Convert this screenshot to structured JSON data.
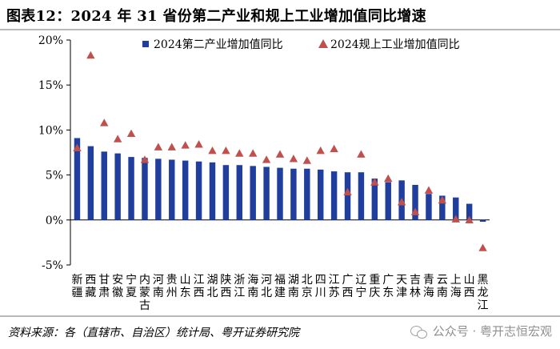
{
  "title": "图表12：2024 年 31 省份第二产业和规上工业增加值同比增速",
  "source": "资料来源：各（直辖市、自治区）统计局、粤开证券研究院",
  "watermark": "公众号 · 粤开志恒宏观",
  "chart_data": {
    "type": "bar",
    "categories": [
      "新疆",
      "西藏",
      "甘肃",
      "安徽",
      "宁夏",
      "内蒙古",
      "河南",
      "贵州",
      "山东",
      "江西",
      "湖北",
      "陕西",
      "浙江",
      "海南",
      "河北",
      "福建",
      "湖南",
      "北京",
      "四川",
      "江苏",
      "广西",
      "辽宁",
      "重庆",
      "广东",
      "天津",
      "吉林",
      "青海",
      "云南",
      "上海",
      "山西",
      "黑龙江"
    ],
    "series": [
      {
        "name": "2024第二产业增加值同比",
        "type": "bar",
        "color": "#1f3e9e",
        "values": [
          9.1,
          8.2,
          7.6,
          7.4,
          7.0,
          6.9,
          6.8,
          6.7,
          6.6,
          6.5,
          6.4,
          6.1,
          6.1,
          6.0,
          5.9,
          5.8,
          5.7,
          5.7,
          5.6,
          5.4,
          5.3,
          5.3,
          4.6,
          4.2,
          4.4,
          3.9,
          2.9,
          2.7,
          2.5,
          1.8,
          -0.2
        ]
      },
      {
        "name": "2024规上工业增加值同比",
        "type": "marker",
        "color": "#c0504d",
        "values": [
          8.0,
          18.3,
          10.8,
          9.0,
          9.6,
          6.7,
          8.1,
          8.1,
          8.3,
          8.4,
          7.7,
          7.7,
          7.4,
          7.4,
          6.7,
          7.3,
          6.8,
          6.6,
          7.7,
          7.9,
          3.1,
          7.3,
          4.2,
          4.6,
          2.0,
          0.9,
          3.3,
          2.2,
          0.1,
          0.0,
          -3.1
        ]
      }
    ],
    "yticks": [
      "20%",
      "15%",
      "10%",
      "5%",
      "0%",
      "-5%"
    ],
    "ylim": [
      -5,
      20
    ],
    "legend_position": "top",
    "grid": false
  }
}
